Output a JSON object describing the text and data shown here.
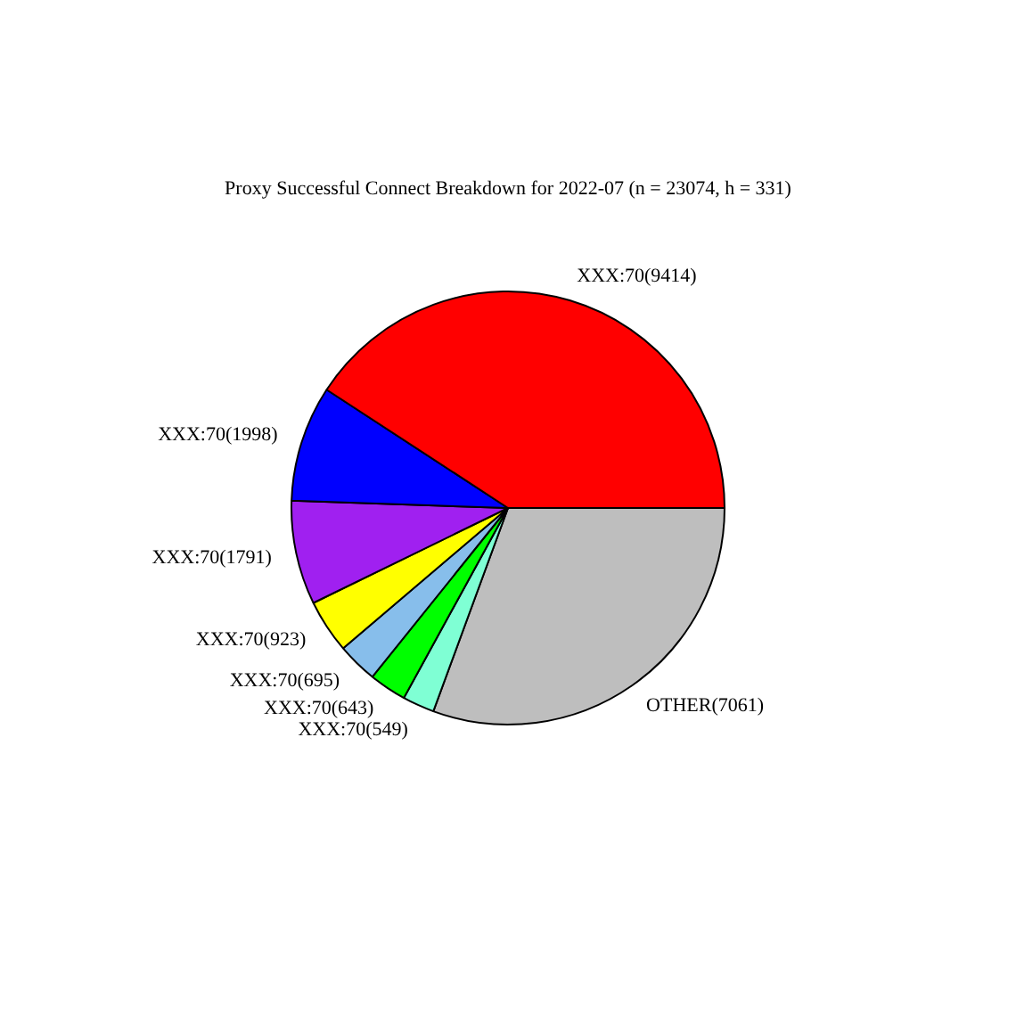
{
  "chart_data": {
    "type": "pie",
    "title": "Proxy Successful Connect Breakdown for 2022-07 (n = 23074, h = 331)",
    "categories": [
      "XXX:70(9414)",
      "XXX:70(1998)",
      "XXX:70(1791)",
      "XXX:70(923)",
      "XXX:70(695)",
      "XXX:70(643)",
      "XXX:70(549)",
      "OTHER(7061)"
    ],
    "values": [
      9414,
      1998,
      1791,
      923,
      695,
      643,
      549,
      7061
    ],
    "colors": [
      "#ff0000",
      "#0000ff",
      "#a020f0",
      "#ffff00",
      "#87beeb",
      "#00ff00",
      "#7fffd4",
      "#bebebe"
    ],
    "legend": false
  }
}
